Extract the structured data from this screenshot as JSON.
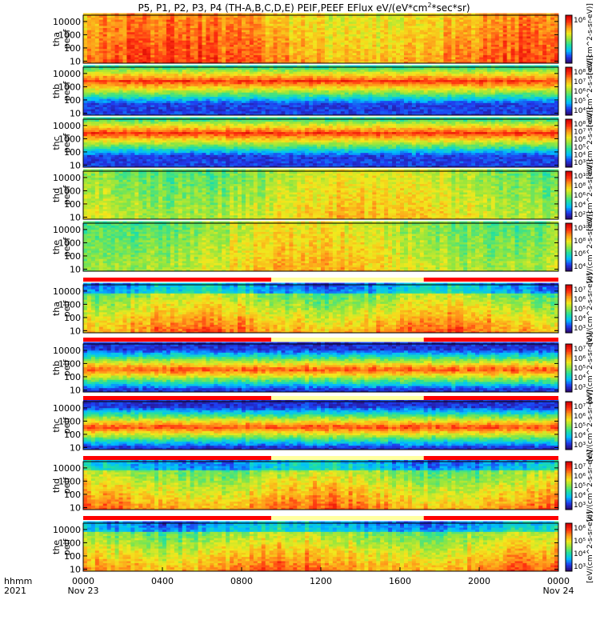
{
  "chart_data": {
    "type": "heatmap",
    "title": "P5, P1, P2, P3, P4 (TH-A,B,C,D,E) PEIF,PEEF EFlux eV/(eV*cm",
    "title_sup": "2",
    "title_tail": "*sec*sr)",
    "x_axis": {
      "row_labels": [
        "hhmm",
        "2021"
      ],
      "ticks": [
        {
          "hour": 0,
          "label": "0000",
          "sub": "Nov 23"
        },
        {
          "hour": 4,
          "label": "0400",
          "sub": ""
        },
        {
          "hour": 8,
          "label": "0800",
          "sub": ""
        },
        {
          "hour": 12,
          "label": "1200",
          "sub": ""
        },
        {
          "hour": 16,
          "label": "1600",
          "sub": ""
        },
        {
          "hour": 20,
          "label": "2000",
          "sub": ""
        },
        {
          "hour": 24,
          "label": "0000",
          "sub": "Nov 24"
        }
      ],
      "range_hours": [
        0,
        24
      ]
    },
    "y_scale": "log",
    "y_range_eV": [
      7,
      30000
    ],
    "y_ticks": [
      "10000",
      "1000",
      "100",
      "10"
    ],
    "panels": [
      {
        "probe": "tha",
        "product": "peef",
        "cbar_ticks": [
          "10⁶"
        ],
        "cbar_label": "[eV/(cm^2-s-sr-eV)]",
        "base": 0.68,
        "spin": 0.12
      },
      {
        "probe": "thb",
        "product": "peef",
        "cbar_ticks": [
          "10⁸",
          "10⁷",
          "10⁶",
          "10⁵",
          "10⁴"
        ],
        "cbar_label": "[eV/(cm^2-s-sr-eV)]",
        "base": 0.5,
        "spin": 0.05
      },
      {
        "probe": "thc",
        "product": "peef",
        "cbar_ticks": [
          "10⁸",
          "10⁷",
          "10⁶",
          "10⁵",
          "10⁴",
          "10³"
        ],
        "cbar_label": "[eV/(cm^2-s-sr-eV)]",
        "base": 0.5,
        "spin": 0.05
      },
      {
        "probe": "thd",
        "product": "peef",
        "cbar_ticks": [
          "10¹⁰",
          "10⁸",
          "10⁶",
          "10⁴",
          "10²"
        ],
        "cbar_label": "[eV/(cm^2-s-sr-eV)]",
        "base": 0.52,
        "spin": 0.1
      },
      {
        "probe": "the",
        "product": "peef",
        "cbar_ticks": [
          "10¹⁰",
          "10⁸",
          "10⁶",
          "10⁴"
        ],
        "cbar_label": "[eV/(cm^2-s-sr-eV)]",
        "base": 0.52,
        "spin": 0.1
      },
      {
        "probe": "tha",
        "product": "peif",
        "cbar_ticks": [
          "10⁷",
          "10⁶",
          "10⁵",
          "10⁴",
          "10³"
        ],
        "cbar_label": "[eV/(cm^2-s-sr-eV)]",
        "base": 0.42,
        "spin": 0.12
      },
      {
        "probe": "thb",
        "product": "peif",
        "cbar_ticks": [
          "10⁷",
          "10⁶",
          "10⁵",
          "10⁴",
          "10³"
        ],
        "cbar_label": "[eV/(cm^2-s-sr-eV)]",
        "base": 0.4,
        "spin": 0.08
      },
      {
        "probe": "thc",
        "product": "peif",
        "cbar_ticks": [
          "10⁷",
          "10⁶",
          "10⁵",
          "10⁴",
          "10³"
        ],
        "cbar_label": "[eV/(cm^2-s-sr-eV)]",
        "base": 0.4,
        "spin": 0.08
      },
      {
        "probe": "thd",
        "product": "peif",
        "cbar_ticks": [
          "10⁷",
          "10⁶",
          "10⁵",
          "10⁴",
          "10³"
        ],
        "cbar_label": "[eV/(cm^2-s-sr-eV)]",
        "base": 0.42,
        "spin": 0.12
      },
      {
        "probe": "the",
        "product": "peif",
        "cbar_ticks": [
          "10⁶",
          "10⁵",
          "10⁴",
          "10³"
        ],
        "cbar_label": "[eV/(cm^2-s-sr-eV)]",
        "base": 0.42,
        "spin": 0.12
      }
    ],
    "colorscale": [
      "#2a0a78",
      "#1f3cf0",
      "#00bfff",
      "#21e0a0",
      "#8fe640",
      "#f2e81c",
      "#ff9a1a",
      "#ff3010",
      "#d40000"
    ],
    "bar_colors": {
      "mode_a": "#ff0000",
      "mode_b": "#ffffa0"
    }
  }
}
